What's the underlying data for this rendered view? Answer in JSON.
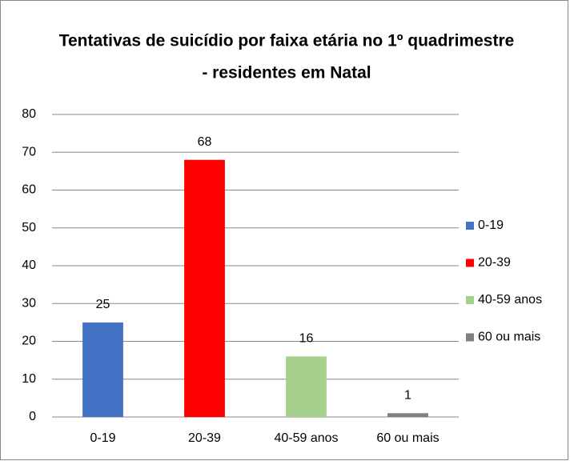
{
  "chart_data": {
    "type": "bar",
    "title": [
      "Tentativas de suicídio por faixa etária no 1º quadrimestre",
      "- residentes em Natal"
    ],
    "categories": [
      "0-19",
      "20-39",
      "40-59 anos",
      "60 ou mais"
    ],
    "values": [
      25,
      68,
      16,
      1
    ],
    "colors": [
      "#4472c4",
      "#ff0000",
      "#a6d18c",
      "#808080"
    ],
    "ylim": [
      0,
      80
    ],
    "yticks": [
      0,
      10,
      20,
      30,
      40,
      50,
      60,
      70,
      80
    ],
    "grid": true,
    "legend": "right"
  }
}
